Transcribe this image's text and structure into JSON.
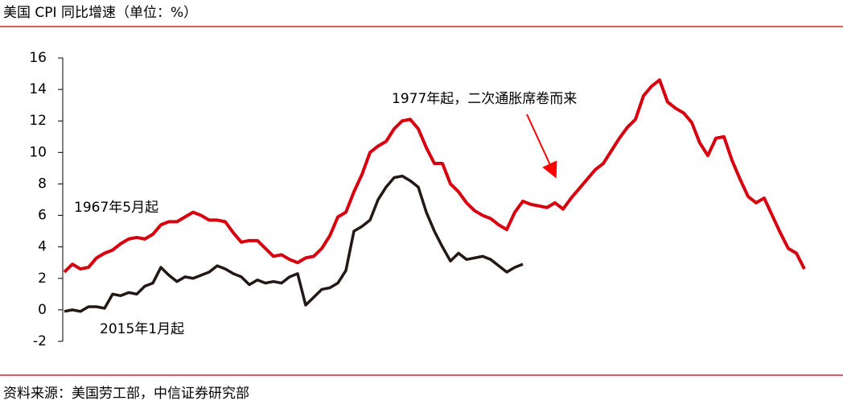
{
  "chart_data": {
    "type": "line",
    "title": "美国 CPI 同比增速（单位：%）",
    "source": "资料来源：美国劳工部，中信证券研究部",
    "annotations": [
      "1967年5月起",
      "2015年1月起",
      "1977年起，二次通胀席卷而来"
    ],
    "ylim": [
      -2,
      16
    ],
    "yticks": [
      -2,
      0,
      2,
      4,
      6,
      8,
      10,
      12,
      14,
      16
    ],
    "series": [
      {
        "color": "#d7000f",
        "values": [
          2.4,
          2.9,
          2.6,
          2.7,
          3.3,
          3.6,
          3.8,
          4.2,
          4.5,
          4.6,
          4.5,
          4.8,
          5.4,
          5.6,
          5.6,
          5.9,
          6.2,
          6.0,
          5.7,
          5.7,
          5.6,
          4.9,
          4.3,
          4.4,
          4.4,
          3.9,
          3.4,
          3.5,
          3.2,
          3.0,
          3.3,
          3.4,
          3.9,
          4.7,
          5.9,
          6.2,
          7.5,
          8.6,
          10.0,
          10.4,
          10.7,
          11.5,
          12.0,
          12.1,
          11.5,
          10.3,
          9.3,
          9.3,
          8.0,
          7.5,
          6.8,
          6.3,
          6.0,
          5.8,
          5.4,
          5.1,
          6.2,
          6.9,
          6.7,
          6.6,
          6.5,
          6.8,
          6.4,
          7.1,
          7.7,
          8.3,
          8.9,
          9.3,
          10.1,
          10.9,
          11.6,
          12.1,
          13.6,
          14.2,
          14.6,
          13.2,
          12.8,
          12.5,
          11.9,
          10.6,
          9.8,
          10.9,
          11.0,
          9.5,
          8.3,
          7.2,
          6.8,
          7.1,
          6.0,
          4.9,
          3.9,
          3.6,
          2.6
        ]
      },
      {
        "color": "#231815",
        "values": [
          -0.1,
          0.0,
          -0.1,
          0.2,
          0.2,
          0.1,
          1.0,
          0.9,
          1.1,
          1.0,
          1.5,
          1.7,
          2.7,
          2.2,
          1.8,
          2.1,
          2.0,
          2.2,
          2.4,
          2.8,
          2.6,
          2.3,
          2.1,
          1.6,
          1.9,
          1.7,
          1.8,
          1.7,
          2.1,
          2.3,
          0.3,
          0.8,
          1.3,
          1.4,
          1.7,
          2.5,
          5.0,
          5.3,
          5.7,
          7.0,
          7.8,
          8.4,
          8.5,
          8.2,
          7.8,
          6.2,
          5.0,
          4.0,
          3.1,
          3.6,
          3.2,
          3.3,
          3.4,
          3.2,
          2.8,
          2.4,
          2.7,
          2.9
        ]
      }
    ]
  }
}
